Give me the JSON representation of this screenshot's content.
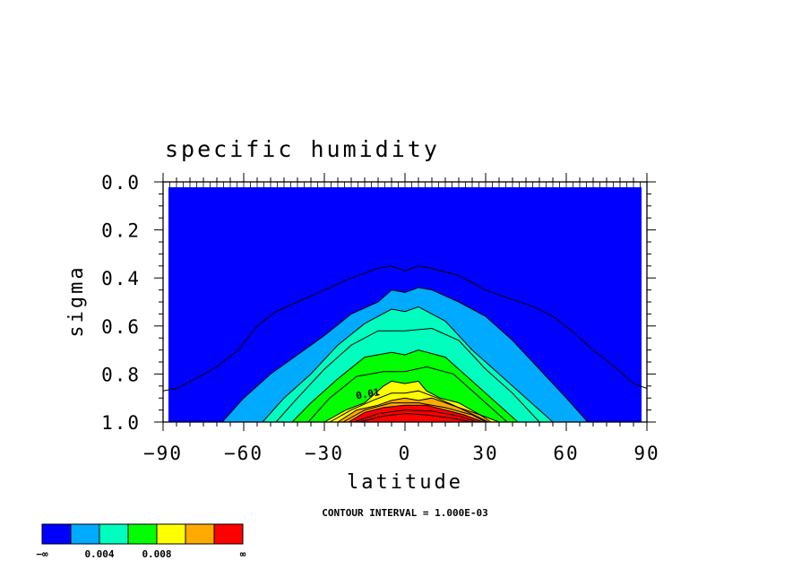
{
  "chart_data": {
    "type": "heatmap",
    "title": "specific humidity",
    "xlabel": "latitude",
    "ylabel": "sigma",
    "xlim": [
      -90,
      90
    ],
    "ylim": [
      1.0,
      0.0
    ],
    "x_ticks": [
      "−90",
      "−60",
      "−30",
      "0",
      "30",
      "60",
      "90"
    ],
    "y_ticks": [
      "0.0",
      "0.2",
      "0.4",
      "0.6",
      "0.8",
      "1.0"
    ],
    "contour_interval_text": "CONTOUR INTERVAL = 1.000E-03",
    "contour_label": "0.01",
    "legend": {
      "colors": [
        "#0000ff",
        "#00aaff",
        "#00ffbf",
        "#00ff00",
        "#ffff00",
        "#ffaa00",
        "#ff0000"
      ],
      "labels": [
        "−∞",
        "0.004",
        "0.008",
        "∞"
      ]
    },
    "bands": [
      {
        "level": 0.002,
        "color": "#00aaff",
        "lat": [
          -68,
          -60,
          -50,
          -40,
          -30,
          -20,
          -10,
          -5,
          0,
          5,
          10,
          20,
          30,
          40,
          50,
          60,
          68
        ],
        "sigma": [
          1.0,
          0.9,
          0.8,
          0.72,
          0.64,
          0.55,
          0.5,
          0.45,
          0.46,
          0.44,
          0.45,
          0.5,
          0.56,
          0.66,
          0.78,
          0.9,
          1.0
        ]
      },
      {
        "level": 0.004,
        "color": "#00ffbf",
        "lat": [
          -53,
          -45,
          -35,
          -25,
          -15,
          -5,
          0,
          5,
          15,
          25,
          35,
          45,
          55
        ],
        "sigma": [
          1.0,
          0.9,
          0.8,
          0.68,
          0.59,
          0.53,
          0.54,
          0.52,
          0.58,
          0.7,
          0.8,
          0.9,
          1.0
        ]
      },
      {
        "level": 0.006,
        "color": "#00ff00",
        "lat": [
          -42,
          -35,
          -25,
          -15,
          -5,
          0,
          5,
          15,
          25,
          35,
          42
        ],
        "sigma": [
          1.0,
          0.92,
          0.82,
          0.73,
          0.71,
          0.72,
          0.7,
          0.73,
          0.83,
          0.93,
          1.0
        ]
      },
      {
        "level": 0.008,
        "color": "#ffff00",
        "lat": [
          -30,
          -22,
          -15,
          -8,
          -5,
          0,
          5,
          8,
          13,
          20,
          28,
          35
        ],
        "sigma": [
          1.0,
          0.95,
          0.92,
          0.85,
          0.83,
          0.84,
          0.83,
          0.87,
          0.9,
          0.92,
          0.97,
          1.0
        ]
      },
      {
        "level": 0.01,
        "color": "#ffaa00",
        "lat": [
          -25,
          -18,
          -10,
          -5,
          0,
          5,
          10,
          20,
          28,
          32
        ],
        "sigma": [
          1.0,
          0.95,
          0.93,
          0.91,
          0.9,
          0.91,
          0.9,
          0.94,
          0.97,
          1.0
        ]
      },
      {
        "level": 0.012,
        "color": "#ff0000",
        "lat": [
          -21,
          -15,
          -8,
          0,
          8,
          15,
          22,
          29
        ],
        "sigma": [
          1.0,
          0.96,
          0.94,
          0.93,
          0.93,
          0.95,
          0.97,
          1.0
        ]
      }
    ],
    "outer_contour": {
      "level": 0.001,
      "lat": [
        -90,
        -85,
        -78,
        -70,
        -62,
        -55,
        -48,
        -40,
        -30,
        -20,
        -10,
        -5,
        0,
        5,
        10,
        20,
        30,
        40,
        48,
        55,
        62,
        70,
        78,
        85,
        90
      ],
      "sigma": [
        0.87,
        0.86,
        0.82,
        0.77,
        0.7,
        0.6,
        0.54,
        0.5,
        0.45,
        0.4,
        0.36,
        0.35,
        0.37,
        0.35,
        0.36,
        0.39,
        0.45,
        0.49,
        0.52,
        0.56,
        0.62,
        0.7,
        0.77,
        0.84,
        0.86
      ]
    },
    "inner_contours": [
      {
        "level": 0.005,
        "lat": [
          -48,
          -40,
          -30,
          -20,
          -10,
          0,
          10,
          20,
          30,
          40,
          50
        ],
        "sigma": [
          1.0,
          0.9,
          0.78,
          0.68,
          0.62,
          0.62,
          0.61,
          0.66,
          0.78,
          0.88,
          1.0
        ]
      },
      {
        "level": 0.007,
        "lat": [
          -36,
          -28,
          -18,
          -8,
          0,
          8,
          18,
          28,
          38
        ],
        "sigma": [
          1.0,
          0.9,
          0.81,
          0.79,
          0.79,
          0.77,
          0.8,
          0.9,
          1.0
        ]
      },
      {
        "level": 0.009,
        "lat": [
          -28,
          -20,
          -12,
          -5,
          0,
          5,
          12,
          20,
          31
        ],
        "sigma": [
          1.0,
          0.95,
          0.91,
          0.88,
          0.88,
          0.87,
          0.9,
          0.94,
          1.0
        ]
      },
      {
        "level": 0.011,
        "lat": [
          -23,
          -15,
          -5,
          5,
          15,
          25,
          30
        ],
        "sigma": [
          1.0,
          0.95,
          0.92,
          0.92,
          0.94,
          0.97,
          1.0
        ]
      },
      {
        "level": 0.013,
        "lat": [
          -19,
          -10,
          0,
          10,
          20,
          27
        ],
        "sigma": [
          1.0,
          0.965,
          0.95,
          0.955,
          0.975,
          1.0
        ]
      },
      {
        "level": 0.014,
        "lat": [
          -17,
          -8,
          0,
          8,
          18,
          25
        ],
        "sigma": [
          1.0,
          0.975,
          0.965,
          0.97,
          0.985,
          1.0
        ]
      }
    ]
  }
}
